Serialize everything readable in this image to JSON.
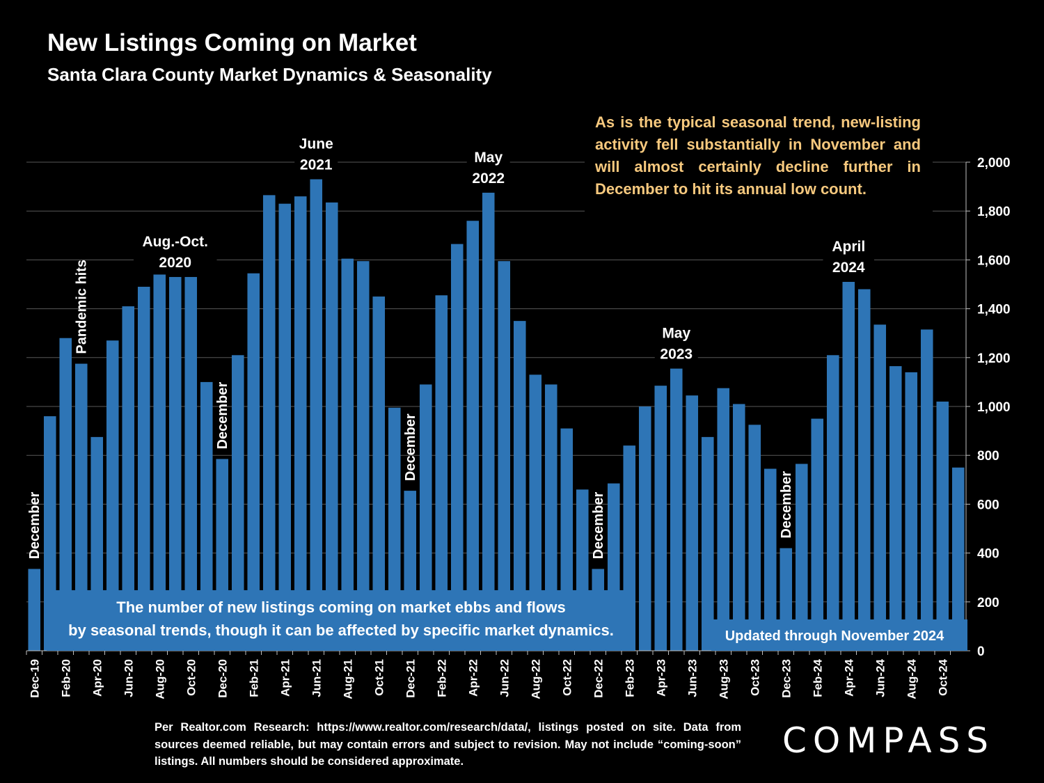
{
  "header": {
    "title": "New Listings Coming on Market",
    "subtitle": "Santa Clara County Market Dynamics & Seasonality"
  },
  "note": "As is the typical seasonal trend, new-listing activity fell substantially in November and will almost certainly decline further in December to hit its annual low count.",
  "footer": "Per Realtor.com Research: https://www.realtor.com/research/data/, listings posted on site. Data from sources deemed reliable, but may contain errors and subject to revision. May not include “coming-soon” listings. All numbers should be considered approximate.",
  "logo": "COMPASS",
  "colors": {
    "bar": "#2e75b6",
    "note": "#f7c97e",
    "background": "#000000",
    "grid": "#595959"
  },
  "chart_data": {
    "type": "bar",
    "title": "New Listings Coming on Market",
    "subtitle": "Santa Clara County Market Dynamics & Seasonality",
    "xlabel": "",
    "ylabel": "",
    "ylim": [
      0,
      2000
    ],
    "yticks": [
      0,
      200,
      400,
      600,
      800,
      1000,
      1200,
      1400,
      1600,
      1800,
      2000
    ],
    "y_axis_side": "right",
    "grid": true,
    "categories": [
      "Dec-19",
      "Jan-20",
      "Feb-20",
      "Mar-20",
      "Apr-20",
      "May-20",
      "Jun-20",
      "Jul-20",
      "Aug-20",
      "Sep-20",
      "Oct-20",
      "Nov-20",
      "Dec-20",
      "Jan-21",
      "Feb-21",
      "Mar-21",
      "Apr-21",
      "May-21",
      "Jun-21",
      "Jul-21",
      "Aug-21",
      "Sep-21",
      "Oct-21",
      "Nov-21",
      "Dec-21",
      "Jan-22",
      "Feb-22",
      "Mar-22",
      "Apr-22",
      "May-22",
      "Jun-22",
      "Jul-22",
      "Aug-22",
      "Sep-22",
      "Oct-22",
      "Nov-22",
      "Dec-22",
      "Jan-23",
      "Feb-23",
      "Mar-23",
      "Apr-23",
      "May-23",
      "Jun-23",
      "Jul-23",
      "Aug-23",
      "Sep-23",
      "Oct-23",
      "Nov-23",
      "Dec-23",
      "Jan-24",
      "Feb-24",
      "Mar-24",
      "Apr-24",
      "May-24",
      "Jun-24",
      "Jul-24",
      "Aug-24",
      "Sep-24",
      "Oct-24",
      "Nov-24"
    ],
    "tick_labels": [
      "Dec-19",
      "Feb-20",
      "Apr-20",
      "Jun-20",
      "Aug-20",
      "Oct-20",
      "Dec-20",
      "Feb-21",
      "Apr-21",
      "Jun-21",
      "Aug-21",
      "Oct-21",
      "Dec-21",
      "Feb-22",
      "Apr-22",
      "Jun-22",
      "Aug-22",
      "Oct-22",
      "Dec-22",
      "Feb-23",
      "Apr-23",
      "Jun-23",
      "Aug-23",
      "Oct-23",
      "Dec-23",
      "Feb-24",
      "Apr-24",
      "Jun-24",
      "Aug-24",
      "Oct-24"
    ],
    "values": [
      335,
      960,
      1280,
      1175,
      875,
      1270,
      1410,
      1490,
      1540,
      1530,
      1530,
      1100,
      785,
      1210,
      1545,
      1865,
      1830,
      1860,
      1930,
      1835,
      1605,
      1595,
      1450,
      995,
      655,
      1090,
      1455,
      1665,
      1760,
      1875,
      1595,
      1350,
      1130,
      1090,
      910,
      660,
      335,
      685,
      840,
      1000,
      1085,
      1155,
      1045,
      875,
      1075,
      1010,
      925,
      745,
      420,
      765,
      950,
      1210,
      1510,
      1480,
      1335,
      1165,
      1140,
      1315,
      1020,
      750
    ],
    "annotations": [
      {
        "text": "December",
        "index": 0,
        "rotated": true
      },
      {
        "text": "Pandemic hits",
        "index": 3,
        "rotated": true
      },
      {
        "text": "Aug.-Oct. 2020",
        "index": 9,
        "rotated": false
      },
      {
        "text": "December",
        "index": 12,
        "rotated": true
      },
      {
        "text": "June 2021",
        "index": 18,
        "rotated": false
      },
      {
        "text": "December",
        "index": 24,
        "rotated": true
      },
      {
        "text": "May 2022",
        "index": 29,
        "rotated": false
      },
      {
        "text": "December",
        "index": 36,
        "rotated": true
      },
      {
        "text": "May 2023",
        "index": 41,
        "rotated": false
      },
      {
        "text": "December",
        "index": 48,
        "rotated": true
      },
      {
        "text": "April 2024",
        "index": 52,
        "rotated": false
      }
    ],
    "text_boxes": [
      {
        "text": "The number of new listings coming on market ebbs and flows by seasonal trends, though it can be affected by specific market dynamics.",
        "placement": "bottom-left"
      },
      {
        "text": "Updated through November 2024",
        "placement": "bottom-right"
      }
    ]
  }
}
